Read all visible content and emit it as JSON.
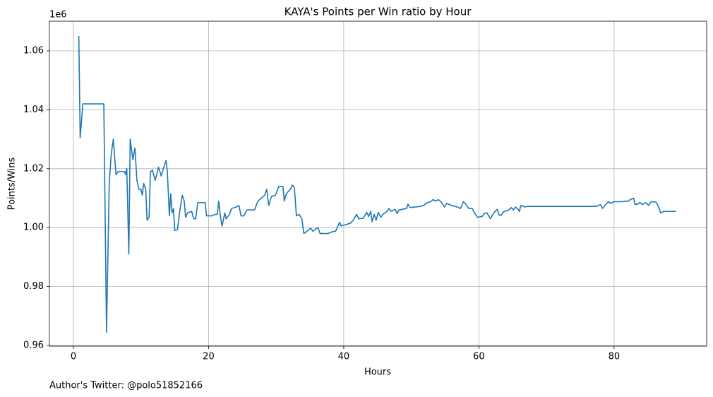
{
  "chart_data": {
    "type": "line",
    "title": "KAYA's Points per Win ratio by Hour",
    "x_label": "Hours",
    "y_label": "Points/Wins",
    "y_offset_label": "1e6",
    "footnote": "Author's Twitter: @polo51852166",
    "grid": true,
    "xlim": [
      -3.55,
      93.7
    ],
    "ylim": [
      959760,
      1070070
    ],
    "xticks": [
      0,
      20,
      40,
      60,
      80
    ],
    "yticks": [
      {
        "value": 960000,
        "label": "0.96"
      },
      {
        "value": 980000,
        "label": "0.98"
      },
      {
        "value": 1000000,
        "label": "1.00"
      },
      {
        "value": 1020000,
        "label": "1.02"
      },
      {
        "value": 1040000,
        "label": "1.04"
      },
      {
        "value": 1060000,
        "label": "1.06"
      }
    ],
    "x": [
      0.8,
      1.0,
      1.4,
      4.5,
      4.9,
      5.3,
      5.6,
      5.9,
      6.3,
      6.6,
      7.6,
      7.7,
      7.9,
      8.2,
      8.4,
      8.8,
      9.1,
      9.4,
      9.7,
      10.0,
      10.2,
      10.4,
      10.7,
      10.9,
      11.2,
      11.4,
      11.7,
      12.1,
      12.6,
      13.0,
      13.3,
      13.7,
      13.9,
      14.2,
      14.4,
      14.6,
      14.8,
      15.0,
      15.4,
      15.7,
      16.1,
      16.4,
      16.6,
      16.9,
      17.5,
      17.8,
      18.1,
      18.4,
      19.5,
      19.7,
      20.5,
      21.0,
      21.3,
      21.5,
      21.8,
      22.0,
      22.4,
      22.6,
      23.1,
      23.4,
      24.1,
      24.5,
      24.8,
      25.2,
      25.7,
      26.8,
      27.3,
      28.3,
      28.6,
      28.9,
      29.3,
      29.9,
      30.4,
      31.0,
      31.2,
      31.5,
      32.1,
      32.4,
      32.7,
      33.0,
      33.4,
      33.8,
      34.1,
      34.6,
      35.1,
      35.4,
      36.2,
      36.5,
      37.7,
      38.2,
      38.8,
      39.4,
      39.6,
      40.3,
      41.0,
      41.4,
      41.9,
      42.2,
      42.9,
      43.4,
      43.7,
      44.0,
      44.2,
      44.5,
      44.8,
      45.1,
      45.5,
      45.8,
      46.4,
      46.7,
      47.0,
      47.6,
      47.9,
      48.2,
      49.3,
      49.5,
      49.8,
      51.3,
      51.8,
      52.4,
      52.9,
      53.2,
      53.6,
      54.0,
      54.5,
      54.9,
      55.2,
      56.0,
      56.8,
      57.3,
      57.7,
      58.1,
      58.5,
      59.0,
      59.5,
      59.8,
      60.5,
      60.8,
      61.2,
      61.7,
      62.2,
      62.7,
      63.0,
      63.3,
      63.7,
      64.3,
      64.8,
      65.1,
      65.4,
      65.8,
      66.0,
      66.2,
      66.8,
      67.1,
      77.4,
      78.0,
      78.3,
      78.8,
      79.2,
      79.5,
      80.0,
      81.1,
      82.1,
      82.4,
      82.9,
      83.1,
      83.5,
      83.8,
      84.2,
      84.7,
      85.1,
      85.5,
      86.2,
      86.5,
      86.9,
      87.4,
      89.2
    ],
    "series": [
      {
        "name": "Points/Wins",
        "color": "#1f77b4",
        "values": [
          1065000,
          1030500,
          1042000,
          1042000,
          964500,
          1015000,
          1025000,
          1030000,
          1018000,
          1019000,
          1019000,
          1018000,
          1020000,
          991000,
          1030000,
          1023000,
          1027000,
          1016000,
          1013000,
          1013000,
          1011000,
          1015000,
          1013000,
          1002500,
          1003500,
          1019000,
          1019500,
          1016000,
          1020500,
          1017500,
          1020000,
          1022800,
          1019000,
          1004000,
          1011500,
          1005000,
          1006500,
          999000,
          999300,
          1005000,
          1011000,
          1009000,
          1003500,
          1005000,
          1005500,
          1003000,
          1003000,
          1008500,
          1008500,
          1004000,
          1004000,
          1004500,
          1004500,
          1009000,
          1003000,
          1000500,
          1005000,
          1003000,
          1004500,
          1006500,
          1007000,
          1007500,
          1004000,
          1004000,
          1006000,
          1006000,
          1009000,
          1011000,
          1013000,
          1007500,
          1010500,
          1011000,
          1014000,
          1014000,
          1009000,
          1011500,
          1013000,
          1014500,
          1013500,
          1004000,
          1004500,
          1003000,
          998000,
          998800,
          999800,
          998800,
          1000000,
          998000,
          998000,
          998500,
          998800,
          1001800,
          1000600,
          1001000,
          1001500,
          1002500,
          1004500,
          1003000,
          1003200,
          1005200,
          1003800,
          1005500,
          1002000,
          1004500,
          1002500,
          1005200,
          1003500,
          1004500,
          1005500,
          1006500,
          1005500,
          1006200,
          1004800,
          1006000,
          1006500,
          1008000,
          1006800,
          1007200,
          1007500,
          1008500,
          1008800,
          1009500,
          1009000,
          1009500,
          1008500,
          1007000,
          1008200,
          1007500,
          1007000,
          1006500,
          1008800,
          1007800,
          1006500,
          1006500,
          1004500,
          1003500,
          1003800,
          1004800,
          1005000,
          1003000,
          1005000,
          1006200,
          1004200,
          1004200,
          1005500,
          1005800,
          1006800,
          1006000,
          1007000,
          1006200,
          1005500,
          1007500,
          1007000,
          1007200,
          1007200,
          1007800,
          1006500,
          1008000,
          1008800,
          1008200,
          1008800,
          1008800,
          1009000,
          1009500,
          1010000,
          1007800,
          1008000,
          1008500,
          1007800,
          1008500,
          1007500,
          1008800,
          1008700,
          1007500,
          1005000,
          1005500,
          1005500
        ]
      }
    ]
  }
}
